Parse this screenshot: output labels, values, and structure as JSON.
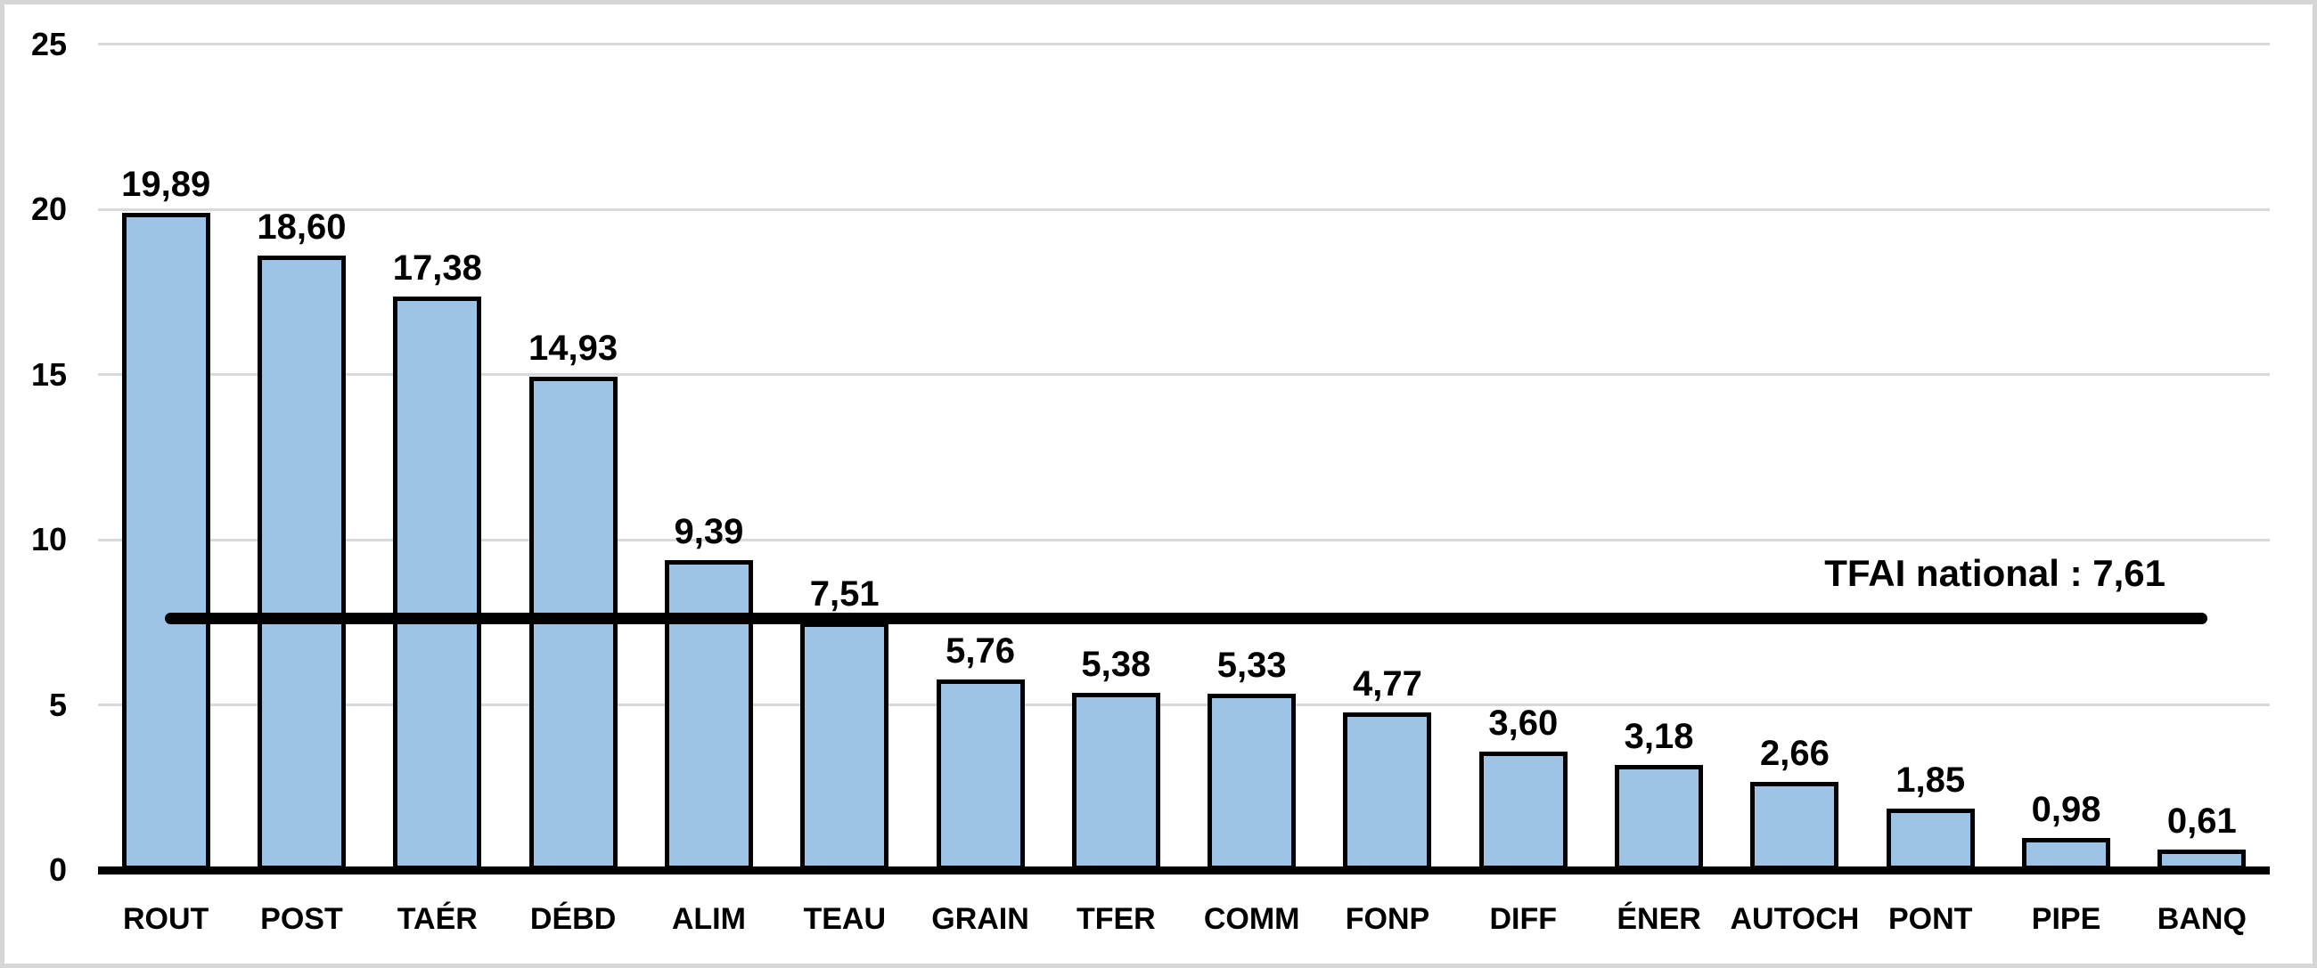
{
  "chart_data": {
    "type": "bar",
    "title": "",
    "xlabel": "",
    "ylabel": "",
    "categories": [
      "ROUT",
      "POST",
      "TAÉR",
      "DÉBD",
      "ALIM",
      "TEAU",
      "GRAIN",
      "TFER",
      "COMM",
      "FONP",
      "DIFF",
      "ÉNER",
      "AUTOCH",
      "PONT",
      "PIPE",
      "BANQ"
    ],
    "values": [
      19.89,
      18.6,
      17.38,
      14.93,
      9.39,
      7.51,
      5.76,
      5.38,
      5.33,
      4.77,
      3.6,
      3.18,
      2.66,
      1.85,
      0.98,
      0.61
    ],
    "value_labels": [
      "19,89",
      "18,60",
      "17,38",
      "14,93",
      "9,39",
      "7,51",
      "5,76",
      "5,38",
      "5,33",
      "4,77",
      "3,60",
      "3,18",
      "2,66",
      "1,85",
      "0,98",
      "0,61"
    ],
    "ylim": [
      0,
      25
    ],
    "yticks": [
      0,
      5,
      10,
      15,
      20,
      25
    ],
    "ytick_labels": [
      "0",
      "5",
      "10",
      "15",
      "20",
      "25"
    ],
    "grid": "horizontal",
    "legend": "none",
    "reference_line": {
      "value": 7.61,
      "label": "TFAI national : 7,61"
    },
    "colors": {
      "bar_fill": "#9dc3e6",
      "bar_border": "#000000",
      "gridline": "#d9d9d9",
      "axis_line": "#000000",
      "reference_line": "#000000",
      "frame_border": "#d6d6d6"
    }
  }
}
